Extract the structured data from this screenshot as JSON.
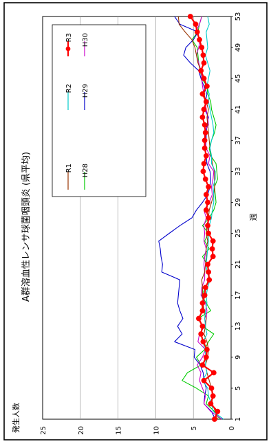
{
  "chart_data": {
    "type": "line",
    "title": "A群溶血性レンサ球菌咽頭炎 (県平均)",
    "xlabel": "週",
    "ylabel": "発生人数",
    "x_ticks": [
      1,
      5,
      9,
      13,
      17,
      21,
      25,
      29,
      33,
      37,
      41,
      45,
      49,
      53
    ],
    "y_ticks": [
      0,
      5,
      10,
      15,
      20,
      25
    ],
    "xlim": [
      1,
      53
    ],
    "ylim": [
      0,
      25
    ],
    "grid": "horizontal",
    "legend_position": "top-right",
    "series": [
      {
        "name": "H28",
        "color": "#00cc00",
        "values": [
          1.5,
          2.2,
          3.3,
          3.0,
          4.6,
          6.5,
          5.8,
          4.0,
          4.6,
          3.5,
          3.0,
          2.3,
          3.8,
          4.4,
          2.7,
          3.3,
          3.9,
          3.4,
          3.0,
          3.0,
          3.2,
          3.8,
          2.9,
          3.5,
          3.0,
          3.8,
          2.9,
          2.3,
          2.0,
          2.1,
          2.2,
          1.8,
          1.9,
          2.0,
          2.7,
          2.9,
          2.6,
          2.2,
          2.0,
          2.3,
          2.6,
          2.7,
          3.1,
          3.2,
          3.9,
          4.1,
          4.3,
          4.4,
          4.5,
          5.2,
          4.4,
          4.2,
          3.9
        ]
      },
      {
        "name": "H29",
        "color": "#0000cc",
        "values": [
          2.1,
          2.6,
          3.6,
          3.5,
          3.3,
          3.6,
          3.7,
          4.1,
          4.9,
          4.8,
          7.5,
          6.5,
          7.1,
          6.4,
          6.8,
          7.1,
          7.0,
          6.9,
          6.8,
          9.2,
          9.1,
          9.3,
          9.4,
          9.6,
          8.2,
          6.8,
          5.2,
          4.6,
          3.8,
          3.1,
          2.8,
          2.7,
          2.8,
          3.2,
          3.3,
          3.4,
          3.3,
          3.3,
          3.2,
          3.0,
          3.5,
          3.4,
          3.2,
          3.6,
          4.0,
          4.3,
          5.4,
          6.3,
          6.0,
          5.0,
          4.4,
          6.8,
          7.5
        ]
      },
      {
        "name": "H30",
        "color": "#cc00cc",
        "values": [
          1.2,
          2.7,
          3.6,
          3.4,
          3.8,
          4.2,
          4.0,
          4.5,
          3.8,
          3.4,
          4.4,
          4.2,
          3.5,
          3.3,
          3.2,
          3.4,
          4.0,
          3.9,
          3.5,
          3.5,
          3.6,
          3.5,
          3.3,
          3.6,
          3.5,
          3.6,
          3.3,
          3.6,
          2.9,
          2.5,
          2.6,
          2.4,
          2.3,
          3.0,
          2.8,
          3.3,
          3.4,
          3.6,
          3.0,
          3.1,
          3.3,
          3.4,
          3.6,
          3.8,
          3.9,
          4.0,
          4.3,
          4.6,
          4.3,
          4.1,
          4.7,
          4.2,
          3.9
        ]
      },
      {
        "name": "R1",
        "color": "#993300",
        "values": [
          1.8,
          2.1,
          2.5,
          2.5,
          2.6,
          2.9,
          3.2,
          3.4,
          3.1,
          3.0,
          3.2,
          3.6,
          3.4,
          3.3,
          3.6,
          3.7,
          3.8,
          3.8,
          3.9,
          3.5,
          3.4,
          3.3,
          3.3,
          3.1,
          3.3,
          3.2,
          3.0,
          2.9,
          2.6,
          2.3,
          2.2,
          2.2,
          2.2,
          2.5,
          2.6,
          2.8,
          2.9,
          3.0,
          3.1,
          3.2,
          3.0,
          3.3,
          3.6,
          3.3,
          3.5,
          4.0,
          4.4,
          4.6,
          4.8,
          5.2,
          6.1,
          6.9,
          7.0
        ]
      },
      {
        "name": "R2",
        "color": "#00cccc",
        "values": [
          1.0,
          2.4,
          2.6,
          3.0,
          3.1,
          3.8,
          3.2,
          3.4,
          3.3,
          3.5,
          3.7,
          3.2,
          3.4,
          3.5,
          3.4,
          3.2,
          3.3,
          3.1,
          2.8,
          3.2,
          3.3,
          3.2,
          3.1,
          3.0,
          3.0,
          2.9,
          2.6,
          2.5,
          2.3,
          2.3,
          2.4,
          2.1,
          2.1,
          2.6,
          2.6,
          2.8,
          2.6,
          2.3,
          2.4,
          2.6,
          2.8,
          3.0,
          2.9,
          3.2,
          3.0,
          2.8,
          3.1,
          3.4,
          3.1,
          3.2,
          3.3,
          2.9,
          3.1
        ]
      },
      {
        "name": "R3",
        "color": "#ff0000",
        "values": [
          2.2,
          1.8,
          2.7,
          2.4,
          2.6,
          3.6,
          2.3,
          3.8,
          3.3,
          3.2,
          3.7,
          4.0,
          3.8,
          4.3,
          3.8,
          3.8,
          3.5,
          3.4,
          2.9,
          3.0,
          3.1,
          2.4,
          2.5,
          2.4,
          3.0,
          3.1,
          3.0,
          3.3,
          3.1,
          3.3,
          3.0,
          3.4,
          3.7,
          3.6,
          3.3,
          3.5,
          3.5,
          3.4,
          3.5,
          3.8,
          3.6,
          3.3,
          3.8,
          3.2,
          3.6,
          4.0,
          3.6,
          3.7,
          3.9,
          4.2,
          4.5,
          4.7,
          5.4
        ]
      }
    ]
  }
}
